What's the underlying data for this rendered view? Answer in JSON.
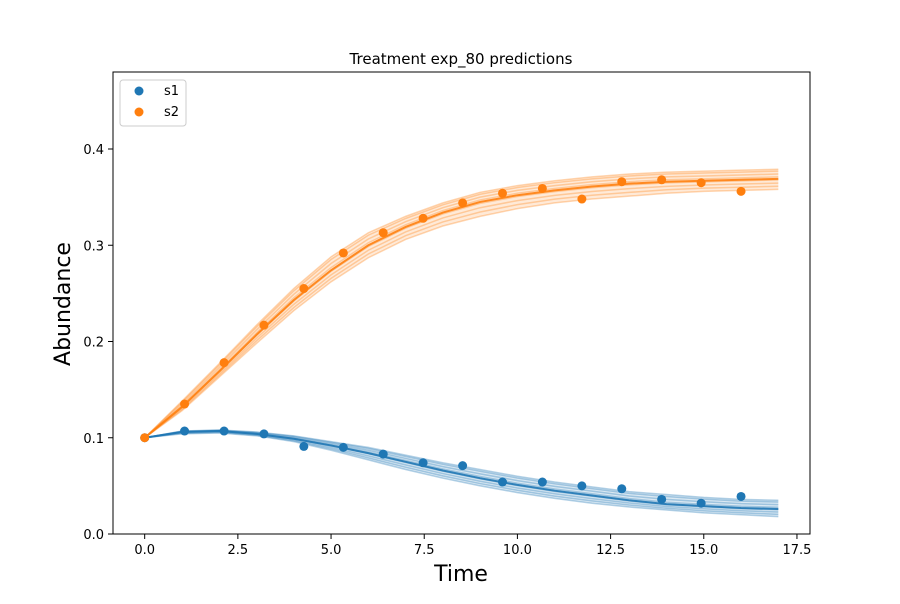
{
  "chart_data": {
    "type": "scatter",
    "title": "Treatment exp_80 predictions",
    "xlabel": "Time",
    "ylabel": "Abundance",
    "xlim": [
      -0.85,
      17.85
    ],
    "ylim": [
      0.0,
      0.48
    ],
    "xticks": [
      0.0,
      2.5,
      5.0,
      7.5,
      10.0,
      12.5,
      15.0,
      17.5
    ],
    "xtick_labels": [
      "0.0",
      "2.5",
      "5.0",
      "7.5",
      "10.0",
      "12.5",
      "15.0",
      "17.5"
    ],
    "yticks": [
      0.0,
      0.1,
      0.2,
      0.3,
      0.4
    ],
    "ytick_labels": [
      "0.0",
      "0.1",
      "0.2",
      "0.3",
      "0.4"
    ],
    "grid": false,
    "legend_position": "top-left",
    "series": [
      {
        "name": "s1",
        "color": "#1f77b4",
        "points": [
          [
            0.0,
            0.1
          ],
          [
            1.07,
            0.107
          ],
          [
            2.13,
            0.107
          ],
          [
            3.2,
            0.104
          ],
          [
            4.27,
            0.091
          ],
          [
            5.33,
            0.09
          ],
          [
            6.4,
            0.083
          ],
          [
            7.47,
            0.074
          ],
          [
            8.53,
            0.071
          ],
          [
            9.6,
            0.054
          ],
          [
            10.67,
            0.054
          ],
          [
            11.73,
            0.05
          ],
          [
            12.8,
            0.047
          ],
          [
            13.87,
            0.036
          ],
          [
            14.93,
            0.032
          ],
          [
            16.0,
            0.039
          ]
        ]
      },
      {
        "name": "s2",
        "color": "#ff7f0e",
        "points": [
          [
            0.0,
            0.1
          ],
          [
            1.07,
            0.135
          ],
          [
            2.13,
            0.178
          ],
          [
            3.2,
            0.217
          ],
          [
            4.27,
            0.255
          ],
          [
            5.33,
            0.292
          ],
          [
            6.4,
            0.313
          ],
          [
            7.47,
            0.328
          ],
          [
            8.53,
            0.344
          ],
          [
            9.6,
            0.354
          ],
          [
            10.67,
            0.359
          ],
          [
            11.73,
            0.348
          ],
          [
            12.8,
            0.366
          ],
          [
            13.87,
            0.368
          ],
          [
            14.93,
            0.365
          ],
          [
            16.0,
            0.356
          ]
        ]
      }
    ],
    "prediction_bands": [
      {
        "series": "s1",
        "color": "#1f77b4",
        "x": [
          0,
          1,
          2,
          3,
          4,
          5,
          6,
          7,
          8,
          9,
          10,
          11,
          12,
          13,
          14,
          15,
          16,
          17
        ],
        "lower": [
          0.1,
          0.104,
          0.105,
          0.102,
          0.096,
          0.087,
          0.077,
          0.067,
          0.058,
          0.05,
          0.043,
          0.037,
          0.032,
          0.028,
          0.025,
          0.022,
          0.02,
          0.018
        ],
        "mid": [
          0.1,
          0.106,
          0.107,
          0.104,
          0.099,
          0.092,
          0.084,
          0.075,
          0.066,
          0.058,
          0.051,
          0.045,
          0.04,
          0.035,
          0.031,
          0.029,
          0.027,
          0.026
        ],
        "upper": [
          0.1,
          0.107,
          0.108,
          0.106,
          0.102,
          0.096,
          0.09,
          0.082,
          0.074,
          0.067,
          0.06,
          0.054,
          0.049,
          0.044,
          0.041,
          0.038,
          0.036,
          0.035
        ]
      },
      {
        "series": "s2",
        "color": "#ff7f0e",
        "x": [
          0,
          1,
          2,
          3,
          4,
          5,
          6,
          7,
          8,
          9,
          10,
          11,
          12,
          13,
          14,
          15,
          16,
          17
        ],
        "lower": [
          0.1,
          0.128,
          0.163,
          0.198,
          0.232,
          0.262,
          0.287,
          0.306,
          0.32,
          0.33,
          0.338,
          0.344,
          0.348,
          0.351,
          0.354,
          0.356,
          0.357,
          0.358
        ],
        "mid": [
          0.1,
          0.132,
          0.169,
          0.207,
          0.243,
          0.274,
          0.3,
          0.319,
          0.334,
          0.345,
          0.352,
          0.357,
          0.361,
          0.364,
          0.366,
          0.367,
          0.368,
          0.369
        ],
        "upper": [
          0.1,
          0.138,
          0.177,
          0.217,
          0.255,
          0.288,
          0.313,
          0.33,
          0.344,
          0.355,
          0.362,
          0.367,
          0.371,
          0.374,
          0.376,
          0.377,
          0.378,
          0.379
        ]
      }
    ]
  }
}
